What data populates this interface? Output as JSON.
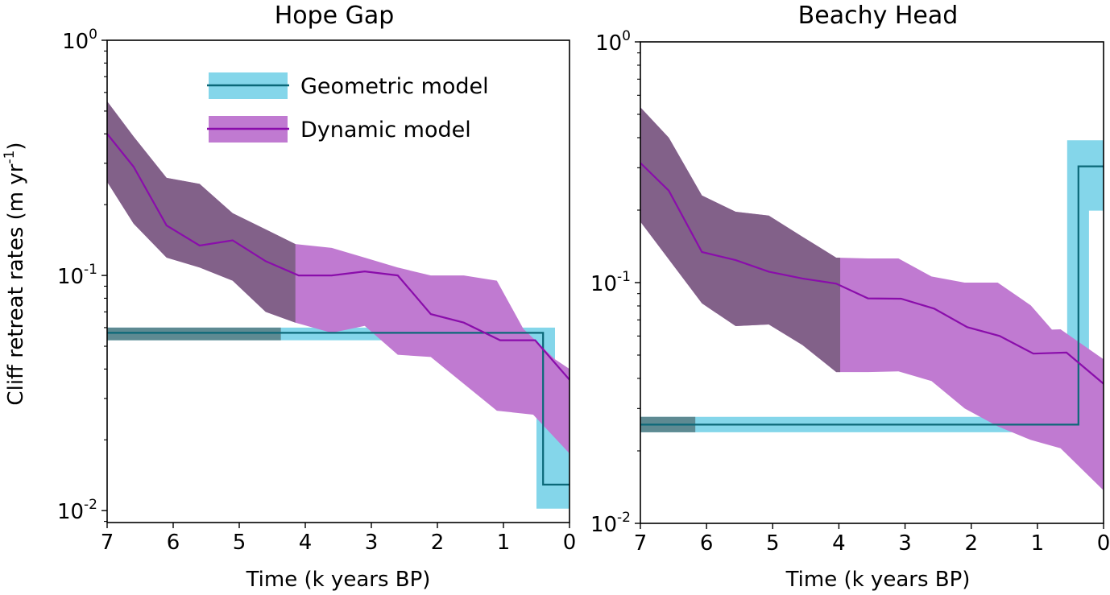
{
  "chart_data": [
    {
      "type": "line",
      "title": "Hope Gap",
      "xlabel": "Time (k years BP)",
      "ylabel": "Cliff retreat rates (m yr-1)",
      "yscale": "log",
      "xlim": [
        7,
        0
      ],
      "ylim": [
        0.0089,
        1
      ],
      "xticks": [
        "7",
        "6",
        "5",
        "4",
        "3",
        "2",
        "1",
        "0"
      ],
      "yticks": [
        {
          "base": "10",
          "exp": "0",
          "value": 1
        },
        {
          "base": "10",
          "exp": "-1",
          "value": 0.1
        },
        {
          "base": "10",
          "exp": "-2",
          "value": 0.01
        }
      ],
      "legend": {
        "position": "top-center",
        "entries": [
          {
            "label": "Geometric model",
            "series": "geometric"
          },
          {
            "label": "Dynamic model",
            "series": "dynamic"
          }
        ]
      },
      "series": [
        {
          "name": "Dynamic model",
          "id": "dynamic",
          "line_color": "#8a0dab",
          "band_color": "#c07ad1",
          "shaded_until_t": 4.15,
          "median": [
            [
              7,
              0.4
            ],
            [
              6.6,
              0.29
            ],
            [
              6.1,
              0.163
            ],
            [
              5.6,
              0.134
            ],
            [
              5.1,
              0.141
            ],
            [
              4.6,
              0.115
            ],
            [
              4.1,
              0.1
            ],
            [
              3.6,
              0.1
            ],
            [
              3.1,
              0.104
            ],
            [
              2.6,
              0.1
            ],
            [
              2.1,
              0.0685
            ],
            [
              1.6,
              0.063
            ],
            [
              1.05,
              0.053
            ],
            [
              0.52,
              0.053
            ],
            [
              0,
              0.036
            ]
          ],
          "upper": [
            [
              7,
              0.55
            ],
            [
              6.6,
              0.39
            ],
            [
              6.1,
              0.26
            ],
            [
              5.6,
              0.245
            ],
            [
              5.1,
              0.184
            ],
            [
              4.6,
              0.157
            ],
            [
              4.15,
              0.136
            ],
            [
              3.6,
              0.131
            ],
            [
              3.1,
              0.119
            ],
            [
              2.6,
              0.108
            ],
            [
              2.1,
              0.1
            ],
            [
              1.6,
              0.1
            ],
            [
              1.1,
              0.095
            ],
            [
              0.7,
              0.0594
            ],
            [
              0.22,
              0.044
            ],
            [
              0,
              0.04
            ]
          ],
          "lower": [
            [
              0,
              0.0175
            ],
            [
              0.55,
              0.0256
            ],
            [
              1.1,
              0.0266
            ],
            [
              2.1,
              0.045
            ],
            [
              2.6,
              0.046
            ],
            [
              3.1,
              0.061
            ],
            [
              3.6,
              0.057
            ],
            [
              4.15,
              0.063
            ],
            [
              4.6,
              0.07
            ],
            [
              5.1,
              0.095
            ],
            [
              5.6,
              0.108
            ],
            [
              6.1,
              0.119
            ],
            [
              6.6,
              0.166
            ],
            [
              7,
              0.25
            ]
          ]
        },
        {
          "name": "Geometric model",
          "id": "geometric",
          "line_color": "#0b6878",
          "band_color": "#5bc8e3",
          "shaded_until_t": 4.37,
          "median": [
            [
              7,
              0.057
            ],
            [
              0.4,
              0.057
            ],
            [
              0.4,
              0.0129
            ],
            [
              0,
              0.0129
            ]
          ],
          "upper": [
            [
              7,
              0.06
            ],
            [
              0.22,
              0.06
            ],
            [
              0.22,
              0.024
            ],
            [
              0,
              0.024
            ]
          ],
          "lower": [
            [
              0,
              0.0102
            ],
            [
              0.5,
              0.0102
            ],
            [
              0.5,
              0.053
            ],
            [
              7,
              0.053
            ]
          ]
        }
      ]
    },
    {
      "type": "line",
      "title": "Beachy Head",
      "xlabel": "Time (k years BP)",
      "ylabel": "",
      "yscale": "log",
      "xlim": [
        7,
        0
      ],
      "ylim": [
        0.01,
        1
      ],
      "xticks": [
        "7",
        "6",
        "5",
        "4",
        "3",
        "2",
        "1",
        "0"
      ],
      "yticks": [
        {
          "base": "10",
          "exp": "0",
          "value": 1
        },
        {
          "base": "10",
          "exp": "-1",
          "value": 0.1
        },
        {
          "base": "10",
          "exp": "-2",
          "value": 0.01
        }
      ],
      "series": [
        {
          "name": "Dynamic model",
          "id": "dynamic",
          "line_color": "#8a0dab",
          "band_color": "#c07ad1",
          "shaded_until_t": 3.98,
          "median": [
            [
              7,
              0.314
            ],
            [
              6.57,
              0.241
            ],
            [
              6.07,
              0.134
            ],
            [
              5.56,
              0.124
            ],
            [
              5.06,
              0.111
            ],
            [
              4.55,
              0.104
            ],
            [
              4.04,
              0.099
            ],
            [
              3.56,
              0.086
            ],
            [
              3.06,
              0.0857
            ],
            [
              2.56,
              0.078
            ],
            [
              2.06,
              0.0653
            ],
            [
              1.57,
              0.06
            ],
            [
              1.06,
              0.0507
            ],
            [
              0.56,
              0.0512
            ],
            [
              0,
              0.038
            ]
          ],
          "upper": [
            [
              7,
              0.535
            ],
            [
              6.57,
              0.4
            ],
            [
              6.07,
              0.23
            ],
            [
              5.56,
              0.197
            ],
            [
              5.06,
              0.19
            ],
            [
              4.55,
              0.155
            ],
            [
              4.04,
              0.127
            ],
            [
              3.56,
              0.126
            ],
            [
              3.1,
              0.126
            ],
            [
              2.6,
              0.106
            ],
            [
              2.1,
              0.1
            ],
            [
              1.6,
              0.1
            ],
            [
              1.1,
              0.0805
            ],
            [
              0.78,
              0.0638
            ],
            [
              0.65,
              0.064
            ],
            [
              0,
              0.048
            ]
          ],
          "lower": [
            [
              0,
              0.0137
            ],
            [
              0.65,
              0.0205
            ],
            [
              1.1,
              0.0222
            ],
            [
              1.6,
              0.0253
            ],
            [
              2.1,
              0.03
            ],
            [
              2.6,
              0.039
            ],
            [
              3.1,
              0.0428
            ],
            [
              3.56,
              0.0425
            ],
            [
              4.04,
              0.0425
            ],
            [
              4.55,
              0.055
            ],
            [
              5.06,
              0.067
            ],
            [
              5.56,
              0.066
            ],
            [
              6.07,
              0.082
            ],
            [
              7,
              0.179
            ]
          ]
        },
        {
          "name": "Geometric model",
          "id": "geometric",
          "line_color": "#0b6878",
          "band_color": "#5bc8e3",
          "shaded_until_t": 6.17,
          "median": [
            [
              7,
              0.0257
            ],
            [
              0.38,
              0.0257
            ],
            [
              0.38,
              0.304
            ],
            [
              0,
              0.304
            ]
          ],
          "upper": [
            [
              7,
              0.0277
            ],
            [
              0.55,
              0.0277
            ],
            [
              0.55,
              0.39
            ],
            [
              0,
              0.39
            ]
          ],
          "lower": [
            [
              0,
              0.199
            ],
            [
              0.22,
              0.199
            ],
            [
              0.22,
              0.0239
            ],
            [
              7,
              0.0239
            ]
          ]
        }
      ]
    }
  ]
}
